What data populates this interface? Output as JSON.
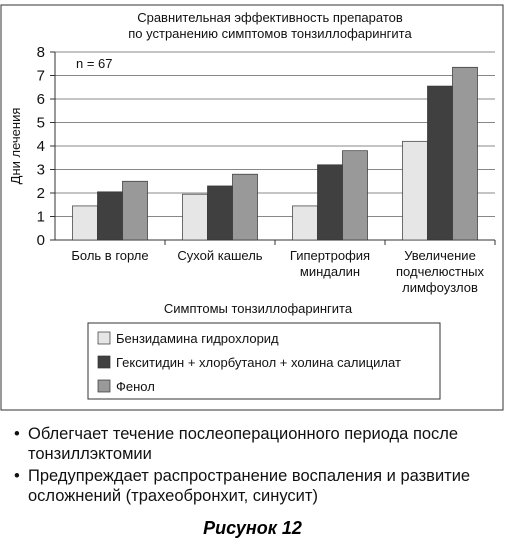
{
  "chart_data": {
    "type": "bar",
    "title": "Сравнительная эффективность препаратов\nпо устранению симптомов тонзиллофарингита",
    "annotation": "n = 67",
    "y_label": "Дни лечения",
    "x_label": "Симптомы тонзиллофарингита",
    "categories": [
      "Боль в горле",
      "Сухой кашель",
      "Гипертрофия\nминдалин",
      "Увеличение\nподчелюстных\nлимфоузлов"
    ],
    "series": [
      {
        "name": "Бензидамина гидрохлорид",
        "color": "#e6e6e6",
        "values": [
          1.45,
          1.95,
          1.45,
          4.2
        ]
      },
      {
        "name": "Гекситидин + хлорбутанол + холина салицилат",
        "color": "#404040",
        "values": [
          2.05,
          2.3,
          3.2,
          6.55
        ]
      },
      {
        "name": "Фенол",
        "color": "#999999",
        "values": [
          2.5,
          2.8,
          3.8,
          7.35
        ]
      }
    ],
    "ylim": [
      0,
      8
    ],
    "yticks": [
      0,
      1,
      2,
      3,
      4,
      5,
      6,
      7,
      8
    ],
    "grid": true
  },
  "bullets": [
    "Облегчает течение послеоперационного периода после тонзиллэктомии",
    "Предупреждает распространение воспаления и развитие осложнений (трахеобронхит, синусит)"
  ],
  "caption": "Рисунок 12"
}
